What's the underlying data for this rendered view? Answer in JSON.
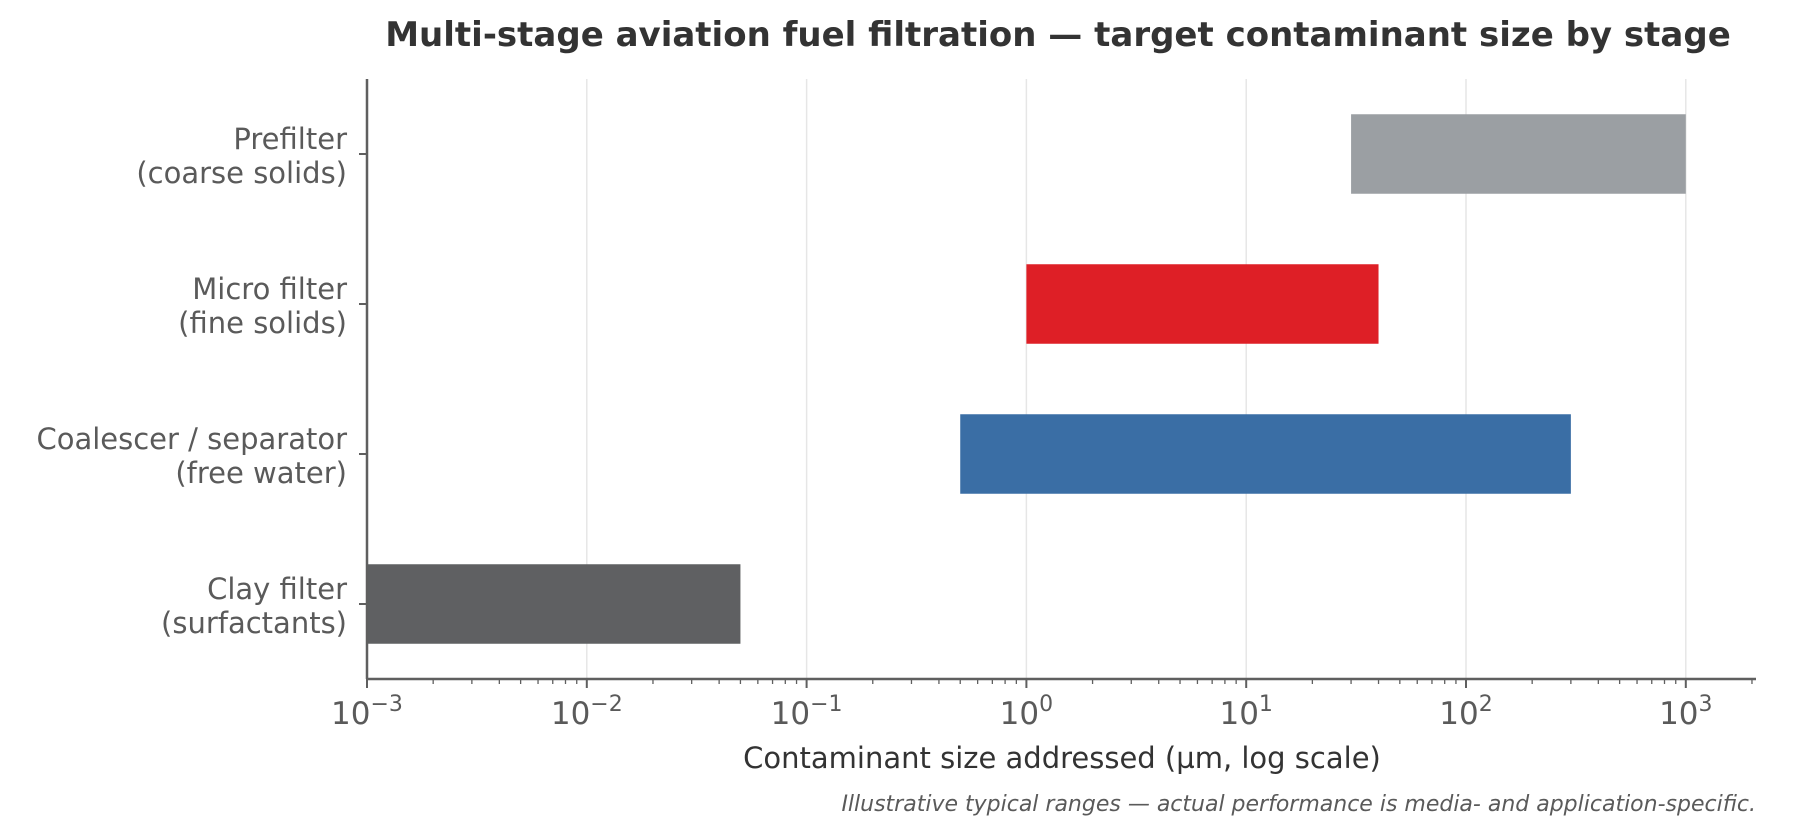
{
  "chart_data": {
    "type": "bar",
    "orientation": "horizontal-range",
    "title": "Multi-stage aviation fuel filtration — target contaminant size by stage",
    "xlabel": "Contaminant size addressed  (µm, log scale)",
    "x_scale": "log",
    "xlim": [
      0.001,
      2000
    ],
    "x_ticks": [
      {
        "base": "10",
        "exp": "−3",
        "value": 0.001
      },
      {
        "base": "10",
        "exp": "−2",
        "value": 0.01
      },
      {
        "base": "10",
        "exp": "−1",
        "value": 0.1
      },
      {
        "base": "10",
        "exp": "0",
        "value": 1
      },
      {
        "base": "10",
        "exp": "1",
        "value": 10
      },
      {
        "base": "10",
        "exp": "2",
        "value": 100
      },
      {
        "base": "10",
        "exp": "3",
        "value": 1000
      }
    ],
    "grid": "vertical",
    "categories": [
      {
        "line1": "Prefilter",
        "line2": "(coarse solids)",
        "min": 30,
        "max": 1000,
        "color": "#9b9fa3"
      },
      {
        "line1": "Micro filter",
        "line2": "(fine solids)",
        "min": 1,
        "max": 40,
        "color": "#de1f26"
      },
      {
        "line1": "Coalescer / separator",
        "line2": "(free water)",
        "min": 0.5,
        "max": 300,
        "color": "#3a6ea5"
      },
      {
        "line1": "Clay filter",
        "line2": "(surfactants)",
        "min": 0.001,
        "max": 0.05,
        "color": "#5f6062"
      }
    ],
    "note": "Illustrative typical ranges — actual performance is media- and application-specific."
  }
}
